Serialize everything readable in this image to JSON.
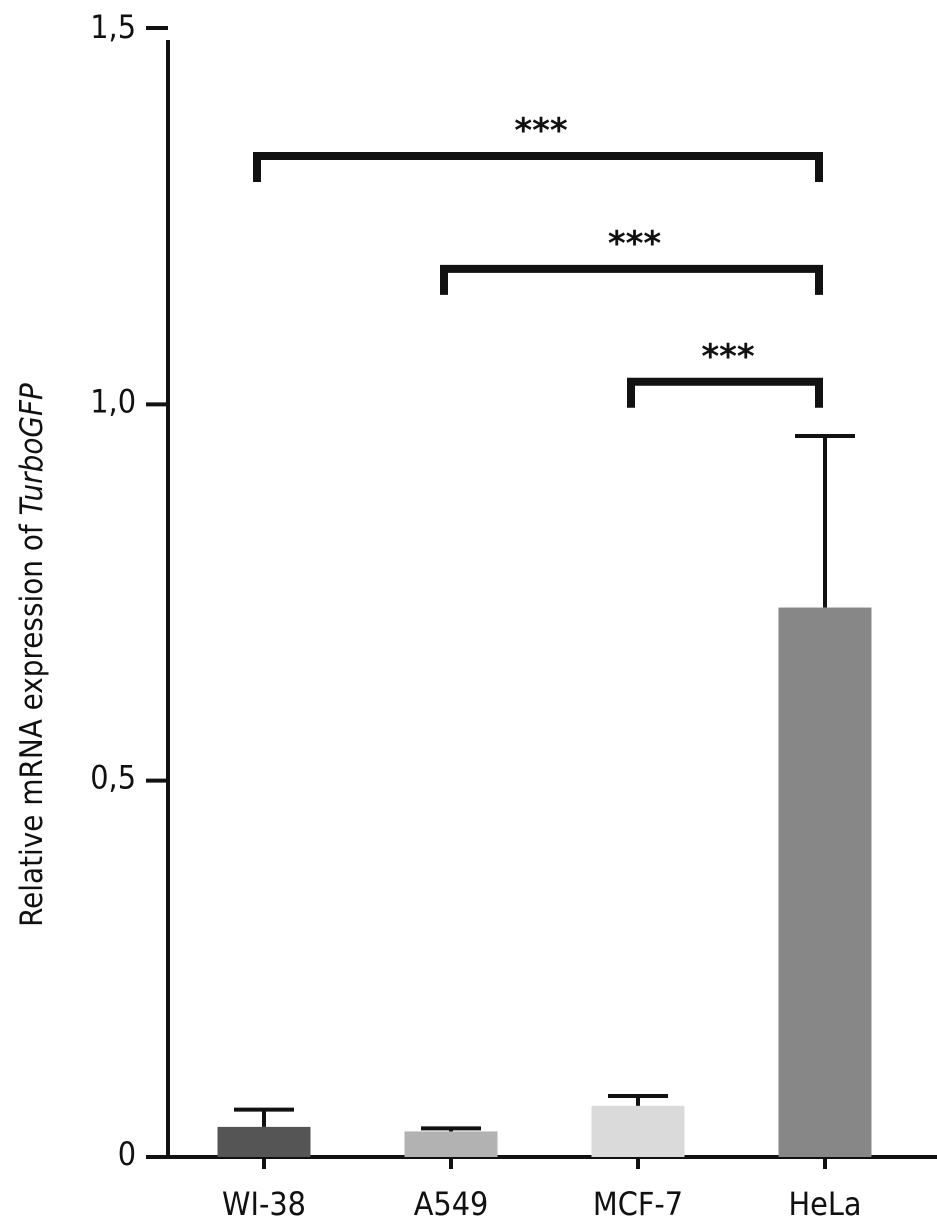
{
  "chart_data": {
    "type": "bar",
    "categories": [
      "WI-38",
      "A549",
      "MCF-7",
      "HeLa"
    ],
    "values": [
      0.04,
      0.034,
      0.068,
      0.73
    ],
    "errors": [
      0.023,
      0.004,
      0.013,
      0.228
    ],
    "colors": [
      "#555555",
      "#b2b2b2",
      "#dadada",
      "#878787"
    ],
    "ylabel_prefix": "Relative mRNA expression of ",
    "ylabel_italic": "TurboGFP",
    "ylim": [
      0,
      1.5
    ],
    "yticks": [
      {
        "value": 0,
        "label": "0"
      },
      {
        "value": 0.5,
        "label": "0,5"
      },
      {
        "value": 1.0,
        "label": "1,0"
      },
      {
        "value": 1.5,
        "label": "1,5"
      }
    ],
    "significance": [
      {
        "from": "WI-38",
        "to": "HeLa",
        "label": "***",
        "y": 1.33
      },
      {
        "from": "A549",
        "to": "HeLa",
        "label": "***",
        "y": 1.18
      },
      {
        "from": "MCF-7",
        "to": "HeLa",
        "label": "***",
        "y": 1.03
      }
    ],
    "grid": false,
    "legend": "none"
  }
}
